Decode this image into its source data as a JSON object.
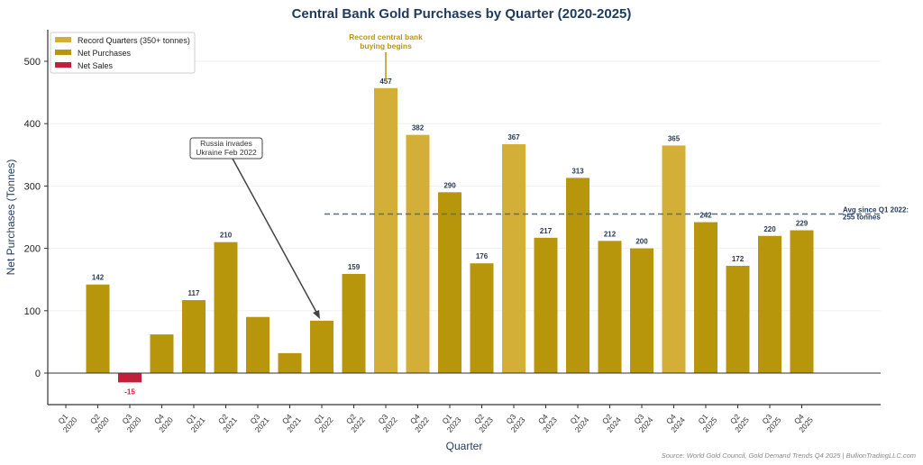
{
  "chart_data": {
    "type": "bar",
    "title": "Central Bank Gold Purchases by Quarter (2020-2025)",
    "xlabel": "Quarter",
    "ylabel": "Net Purchases (Tonnes)",
    "ylim": [
      -51,
      551
    ],
    "yticks": [
      0,
      100,
      200,
      300,
      400,
      500
    ],
    "grid": true,
    "legend_position": "top-left",
    "categories": [
      [
        "Q1",
        "2020"
      ],
      [
        "Q2",
        "2020"
      ],
      [
        "Q3",
        "2020"
      ],
      [
        "Q4",
        "2020"
      ],
      [
        "Q1",
        "2021"
      ],
      [
        "Q2",
        "2021"
      ],
      [
        "Q3",
        "2021"
      ],
      [
        "Q4",
        "2021"
      ],
      [
        "Q1",
        "2022"
      ],
      [
        "Q2",
        "2022"
      ],
      [
        "Q3",
        "2022"
      ],
      [
        "Q4",
        "2022"
      ],
      [
        "Q1",
        "2023"
      ],
      [
        "Q2",
        "2023"
      ],
      [
        "Q3",
        "2023"
      ],
      [
        "Q4",
        "2023"
      ],
      [
        "Q1",
        "2024"
      ],
      [
        "Q2",
        "2024"
      ],
      [
        "Q3",
        "2024"
      ],
      [
        "Q4",
        "2024"
      ],
      [
        "Q1",
        "2025"
      ],
      [
        "Q2",
        "2025"
      ],
      [
        "Q3",
        "2025"
      ],
      [
        "Q4",
        "2025"
      ]
    ],
    "values": [
      0,
      142,
      -15,
      62,
      117,
      210,
      90,
      32,
      84,
      159,
      457,
      382,
      290,
      176,
      367,
      217,
      313,
      212,
      200,
      365,
      242,
      172,
      220,
      229
    ],
    "labeled": [
      false,
      true,
      true,
      false,
      true,
      true,
      false,
      false,
      false,
      true,
      true,
      true,
      true,
      true,
      true,
      true,
      true,
      true,
      true,
      true,
      true,
      true,
      true,
      true
    ],
    "record_threshold": 350,
    "legend": [
      {
        "label": "Record Quarters (350+ tonnes)",
        "color": "#d4af37"
      },
      {
        "label": "Net Purchases",
        "color": "#b8960c"
      },
      {
        "label": "Net Sales",
        "color": "#c41e3a"
      }
    ],
    "average": {
      "value": 255,
      "from_index": 8,
      "label_line1": "Avg since Q1 2022:",
      "label_line2": "255 tonnes"
    },
    "annotations": {
      "russia": {
        "line1": "Russia invades",
        "line2": "Ukraine Feb 2022",
        "target_index": 8
      },
      "record": {
        "line1": "Record central bank",
        "line2": "buying begins",
        "target_index": 10
      }
    },
    "source": "Source: World Gold Council, Gold Demand Trends Q4 2025 | BullionTradingLLC.com"
  },
  "colors": {
    "record": "#d4af37",
    "purchase": "#b8960c",
    "sale": "#c41e3a",
    "title": "#1f3a5f",
    "avg": "#5a6a80"
  }
}
